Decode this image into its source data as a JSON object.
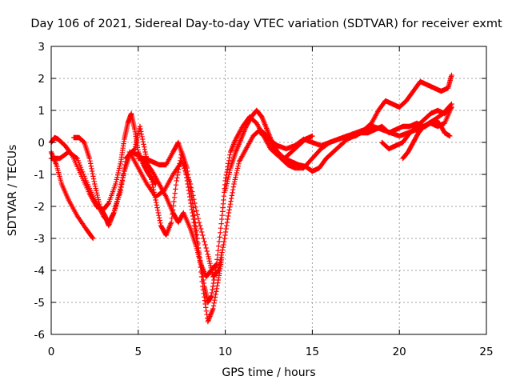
{
  "chart_data": {
    "type": "scatter",
    "title": "Day 106 of 2021, Sidereal Day-to-day VTEC variation (SDTVAR) for receiver exmt",
    "xlabel": "GPS time / hours",
    "ylabel": "SDTVAR / TECUs",
    "xlim": [
      0,
      25
    ],
    "ylim": [
      -6,
      3
    ],
    "xticks": [
      "0",
      "5",
      "10",
      "15",
      "20",
      "25"
    ],
    "yticks": [
      "-6",
      "-5",
      "-4",
      "-3",
      "-2",
      "-1",
      "0",
      "1",
      "2",
      "3"
    ],
    "grid": true,
    "marker": "plus",
    "color": "#ff0000",
    "series": [
      {
        "x": [
          0.0,
          0.3,
          0.6,
          1.0,
          1.5,
          2.0,
          2.4
        ],
        "y": [
          -0.3,
          -0.7,
          -1.3,
          -1.8,
          -2.3,
          -2.7,
          -3.0
        ]
      },
      {
        "x": [
          0.0,
          0.2,
          0.4,
          0.8,
          1.2,
          1.7,
          2.2,
          2.6,
          3.0,
          3.3,
          3.7,
          4.0,
          4.2,
          4.4,
          4.6,
          4.8,
          5.0,
          5.3,
          5.6,
          6.0
        ],
        "y": [
          0.0,
          0.15,
          0.1,
          -0.1,
          -0.4,
          -1.0,
          -1.6,
          -2.0,
          -2.1,
          -1.9,
          -1.3,
          -0.6,
          0.1,
          0.6,
          0.9,
          0.4,
          -0.3,
          -0.7,
          -1.0,
          -1.3
        ]
      },
      {
        "x": [
          0.0,
          0.5,
          1.0,
          1.5,
          2.0,
          2.5,
          3.0,
          3.3,
          3.6,
          4.0,
          4.3,
          4.6,
          5.0,
          5.4,
          5.8,
          6.2,
          6.6,
          7.0,
          7.3,
          7.6,
          8.0,
          8.3,
          8.6,
          8.9,
          9.2,
          9.5
        ],
        "y": [
          -0.5,
          -0.5,
          -0.3,
          -0.5,
          -1.2,
          -1.8,
          -2.3,
          -2.5,
          -2.2,
          -1.5,
          -0.5,
          -0.3,
          -0.4,
          -0.6,
          -0.9,
          -1.3,
          -1.7,
          -2.2,
          -2.5,
          -2.2,
          -2.7,
          -3.2,
          -3.8,
          -4.2,
          -4.0,
          -3.8
        ]
      },
      {
        "x": [
          1.3,
          1.6,
          1.9,
          2.2,
          2.5,
          2.8,
          3.1,
          3.3,
          3.6,
          3.9,
          4.2,
          4.5,
          4.8,
          5.1,
          5.4,
          5.7,
          6.0,
          6.3,
          6.6,
          6.9,
          7.2,
          7.5,
          7.8,
          8.1,
          8.4,
          8.7,
          9.0,
          9.3,
          9.6,
          9.8
        ],
        "y": [
          0.15,
          0.15,
          0.0,
          -0.5,
          -1.3,
          -2.0,
          -2.3,
          -2.6,
          -2.2,
          -1.6,
          -0.9,
          -0.4,
          -0.2,
          0.5,
          -0.3,
          -1.0,
          -1.8,
          -2.6,
          -2.9,
          -2.5,
          -1.2,
          -0.3,
          -0.8,
          -1.8,
          -3.0,
          -4.5,
          -5.6,
          -5.2,
          -4.3,
          -3.6
        ]
      },
      {
        "x": [
          5.0,
          5.4,
          5.8,
          6.2,
          6.6,
          7.0,
          7.3,
          7.6,
          7.9,
          8.2,
          8.5,
          8.8,
          9.0,
          9.2,
          9.5,
          9.8,
          10.0,
          10.3,
          10.6,
          11.0,
          11.4,
          11.8,
          12.2,
          12.6,
          13.0,
          13.4,
          13.8,
          14.2,
          14.6,
          15.0
        ],
        "y": [
          -0.5,
          -0.5,
          -0.6,
          -0.7,
          -0.7,
          -0.3,
          0.0,
          -0.5,
          -1.5,
          -2.5,
          -3.5,
          -4.5,
          -5.0,
          -4.8,
          -3.8,
          -2.4,
          -1.2,
          -0.3,
          0.1,
          0.5,
          0.8,
          0.6,
          0.2,
          -0.2,
          -0.4,
          -0.5,
          -0.3,
          -0.1,
          0.1,
          0.2
        ]
      },
      {
        "x": [
          4.5,
          5.0,
          5.5,
          6.0,
          6.5,
          7.0,
          7.5,
          8.0,
          8.5,
          9.0,
          9.3,
          9.6,
          9.9,
          10.2,
          10.5,
          10.8,
          11.2,
          11.6,
          12.0,
          12.4,
          12.8,
          13.2,
          13.6,
          14.0,
          14.5,
          15.0,
          15.5,
          16.0,
          16.5,
          17.0,
          17.5,
          18.0
        ],
        "y": [
          -0.3,
          -0.8,
          -1.3,
          -1.7,
          -1.5,
          -1.0,
          -0.6,
          -1.3,
          -2.5,
          -3.5,
          -4.2,
          -4.0,
          -3.2,
          -2.2,
          -1.3,
          -0.6,
          -0.2,
          0.2,
          0.4,
          0.2,
          -0.2,
          -0.5,
          -0.7,
          -0.8,
          -0.8,
          -0.5,
          -0.2,
          0.0,
          0.1,
          0.2,
          0.3,
          0.4
        ]
      },
      {
        "x": [
          10.0,
          10.3,
          10.6,
          10.9,
          11.2,
          11.5,
          11.8,
          12.1,
          12.4,
          12.7,
          13.0,
          13.4,
          13.8,
          14.2,
          14.6,
          15.0,
          15.4,
          15.8,
          16.2,
          16.6,
          17.0,
          17.4,
          17.8,
          18.2,
          18.6,
          19.0,
          19.4,
          19.8,
          20.2,
          20.6,
          21.0,
          21.4,
          21.8,
          22.2,
          22.6,
          23.0
        ],
        "y": [
          -1.5,
          -0.8,
          -0.3,
          0.1,
          0.5,
          0.8,
          1.0,
          0.8,
          0.4,
          0.0,
          -0.3,
          -0.5,
          -0.6,
          -0.7,
          -0.75,
          -0.9,
          -0.8,
          -0.5,
          -0.3,
          -0.1,
          0.1,
          0.2,
          0.3,
          0.3,
          0.4,
          0.5,
          0.3,
          0.4,
          0.5,
          0.5,
          0.6,
          0.5,
          0.6,
          0.5,
          0.6,
          1.1
        ]
      },
      {
        "x": [
          12.0,
          12.5,
          13.0,
          13.5,
          14.0,
          14.5,
          15.0,
          15.5,
          16.0,
          16.5,
          17.0,
          17.5,
          18.0,
          18.5,
          19.0,
          19.5,
          20.0,
          20.5,
          21.0,
          21.5,
          22.0,
          22.5,
          23.0
        ],
        "y": [
          0.3,
          0.1,
          -0.1,
          -0.2,
          -0.1,
          0.1,
          0.0,
          -0.1,
          0.0,
          0.1,
          0.2,
          0.2,
          0.4,
          0.5,
          0.4,
          0.3,
          0.2,
          0.3,
          0.4,
          0.5,
          0.7,
          0.9,
          1.2
        ]
      },
      {
        "x": [
          18.0,
          18.4,
          18.8,
          19.2,
          19.6,
          20.0,
          20.4,
          20.8,
          21.2,
          21.6,
          22.0,
          22.4,
          22.8,
          23.0
        ],
        "y": [
          0.4,
          0.6,
          1.0,
          1.3,
          1.2,
          1.1,
          1.3,
          1.6,
          1.9,
          1.8,
          1.7,
          1.6,
          1.7,
          2.1
        ]
      },
      {
        "x": [
          19.0,
          19.4,
          19.8,
          20.2,
          20.6,
          21.0,
          21.4,
          21.8,
          22.2,
          22.6,
          23.0
        ],
        "y": [
          0.0,
          -0.2,
          -0.1,
          0.0,
          0.3,
          0.5,
          0.7,
          0.9,
          1.0,
          0.9,
          1.1
        ]
      },
      {
        "x": [
          20.2,
          20.5,
          20.8,
          21.1,
          21.4,
          21.7,
          22.0,
          22.3,
          22.6,
          22.9
        ],
        "y": [
          -0.5,
          -0.3,
          0.0,
          0.3,
          0.5,
          0.6,
          0.7,
          0.6,
          0.3,
          0.2
        ]
      }
    ]
  }
}
